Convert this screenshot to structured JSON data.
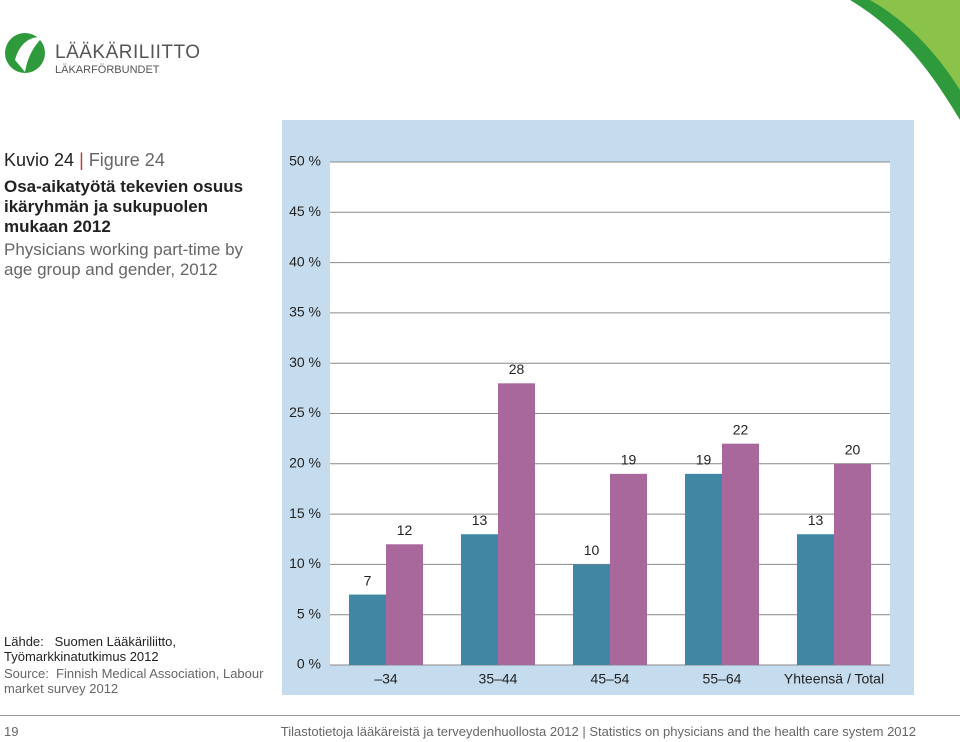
{
  "logo": {
    "name": "LÄÄKÄRILIITTO",
    "name_sv": "LÄKARFÖRBUNDET"
  },
  "figure": {
    "label_fi": "Kuvio 24",
    "separator": "|",
    "label_en": "Figure 24",
    "title_fi": "Osa-aikatyötä tekevien osuus ikäryhmän ja sukupuolen mukaan 2012",
    "title_en": "Physicians working part-time by age group and gender, 2012"
  },
  "source": {
    "fi_label": "Lähde:",
    "fi_text": "Suomen Lääkäriliitto, Työmarkkinatutkimus 2012",
    "en_label": "Source:",
    "en_text": "Finnish Medical Association, Labour market survey 2012"
  },
  "footer": {
    "page": "19",
    "text": "Tilastotietoja lääkäreistä ja terveydenhuollosta 2012 | Statistics on physicians and the health care system 2012"
  },
  "chart_data": {
    "type": "bar",
    "categories": [
      "–34",
      "35–44",
      "45–54",
      "55–64",
      "Yhteensä / Total"
    ],
    "series": [
      {
        "color": "#3f87a3",
        "values": [
          7,
          13,
          10,
          19,
          13
        ]
      },
      {
        "color": "#a8689c",
        "values": [
          12,
          28,
          19,
          22,
          20
        ]
      }
    ],
    "ylim": [
      0,
      50
    ],
    "yticks": [
      {
        "value": 0,
        "label": "0 %"
      },
      {
        "value": 5,
        "label": "5 %"
      },
      {
        "value": 10,
        "label": "10 %"
      },
      {
        "value": 15,
        "label": "15 %"
      },
      {
        "value": 20,
        "label": "20 %"
      },
      {
        "value": 25,
        "label": "25 %"
      },
      {
        "value": 30,
        "label": "30 %"
      },
      {
        "value": 35,
        "label": "35 %"
      },
      {
        "value": 40,
        "label": "40 %"
      },
      {
        "value": 45,
        "label": "45 %"
      },
      {
        "value": 50,
        "label": "50 %"
      }
    ],
    "grid": true
  }
}
